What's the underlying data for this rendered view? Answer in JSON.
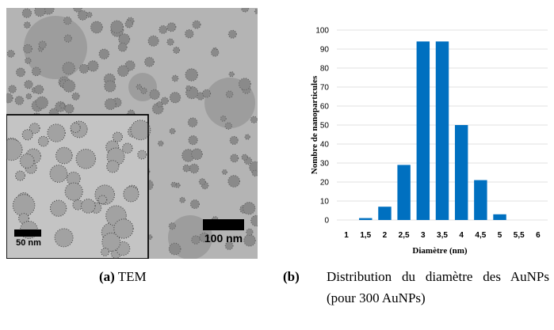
{
  "image": {
    "scale_bar_large": "100 nm",
    "scale_bar_small": "50 nm"
  },
  "captions": [
    {
      "label": "(a)",
      "text": "TEM"
    },
    {
      "label": "(b)",
      "text": "Distribution du diamètre des AuNPs (pour 300 AuNPs)"
    }
  ],
  "chart_data": {
    "type": "bar",
    "ylabel": "Nombre de nanoparticules",
    "xlabel": "Diamètre (nm)",
    "categories": [
      "1",
      "1,5",
      "2",
      "2,5",
      "3",
      "3,5",
      "4",
      "4,5",
      "5",
      "5,5",
      "6"
    ],
    "values": [
      0,
      1,
      7,
      29,
      94,
      94,
      50,
      21,
      3,
      0,
      0
    ],
    "color": "#0070c0",
    "ylim": [
      0,
      100
    ],
    "yticks": [
      0,
      10,
      20,
      30,
      40,
      50,
      60,
      70,
      80,
      90,
      100
    ],
    "grid": true
  }
}
